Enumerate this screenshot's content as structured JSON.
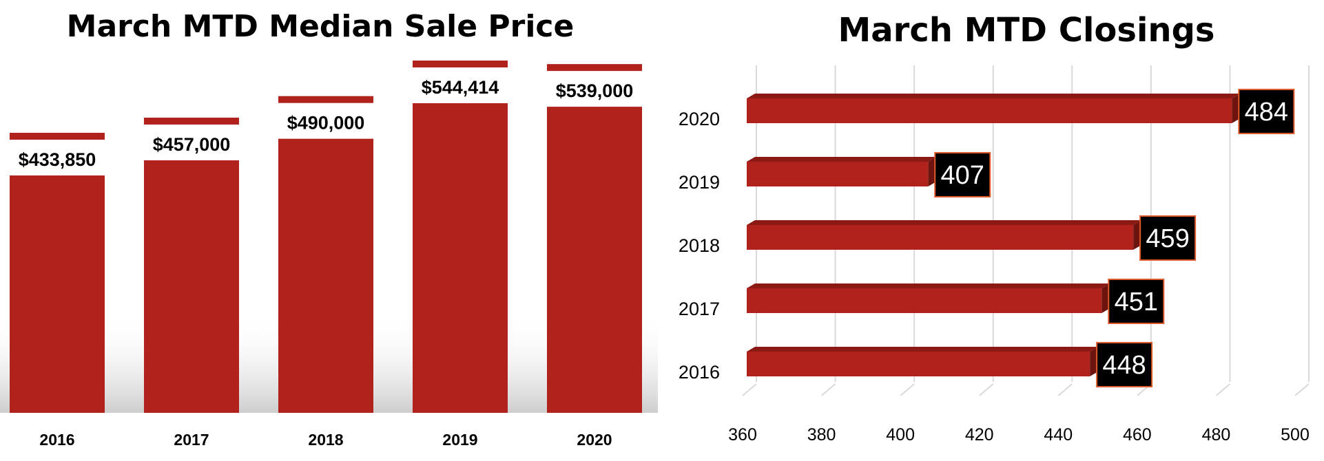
{
  "chart_data": [
    {
      "type": "bar",
      "title": "March MTD Median Sale Price",
      "categories": [
        "2016",
        "2017",
        "2018",
        "2019",
        "2020"
      ],
      "values": [
        433850,
        457000,
        490000,
        544414,
        539000
      ],
      "value_labels": [
        "$433,850",
        "$457,000",
        "$490,000",
        "$544,414",
        "$539,000"
      ],
      "color": "#b0221b",
      "grid": false,
      "legend": "none"
    },
    {
      "type": "bar",
      "orientation": "horizontal",
      "title": "March MTD Closings",
      "categories": [
        "2020",
        "2019",
        "2018",
        "2017",
        "2016"
      ],
      "values": [
        484,
        407,
        459,
        451,
        448
      ],
      "value_labels": [
        "484",
        "407",
        "459",
        "451",
        "448"
      ],
      "xlim": [
        360,
        500
      ],
      "x_ticks": [
        "360",
        "380",
        "400",
        "420",
        "440",
        "460",
        "480",
        "500"
      ],
      "color": "#b0221b",
      "label_box_color": "#000000",
      "label_box_border": "#e05a2b",
      "grid": true,
      "legend": "none"
    }
  ]
}
